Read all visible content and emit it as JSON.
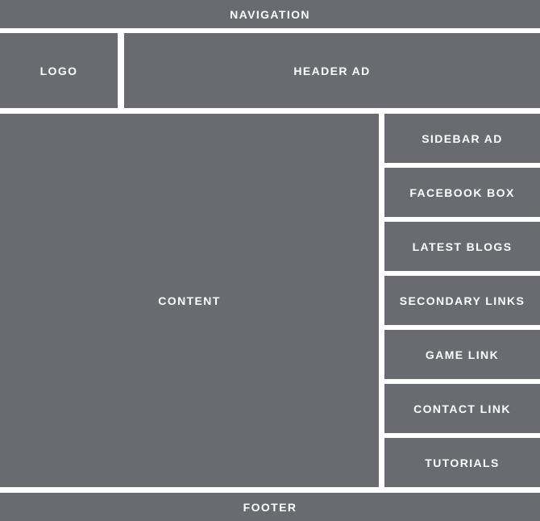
{
  "colors": {
    "block": "#6a6b70",
    "text": "#ffffff",
    "background": "#ffffff"
  },
  "navigation": {
    "label": "NAVIGATION"
  },
  "logo": {
    "label": "LOGO"
  },
  "header_ad": {
    "label": "HEADER AD"
  },
  "content": {
    "label": "CONTENT"
  },
  "sidebar": {
    "items": [
      {
        "label": "SIDEBAR AD"
      },
      {
        "label": "FACEBOOK BOX"
      },
      {
        "label": "LATEST BLOGS"
      },
      {
        "label": "SECONDARY LINKS"
      },
      {
        "label": "GAME LINK"
      },
      {
        "label": "CONTACT LINK"
      },
      {
        "label": "TUTORIALS"
      }
    ]
  },
  "footer": {
    "label": "FOOTER"
  }
}
